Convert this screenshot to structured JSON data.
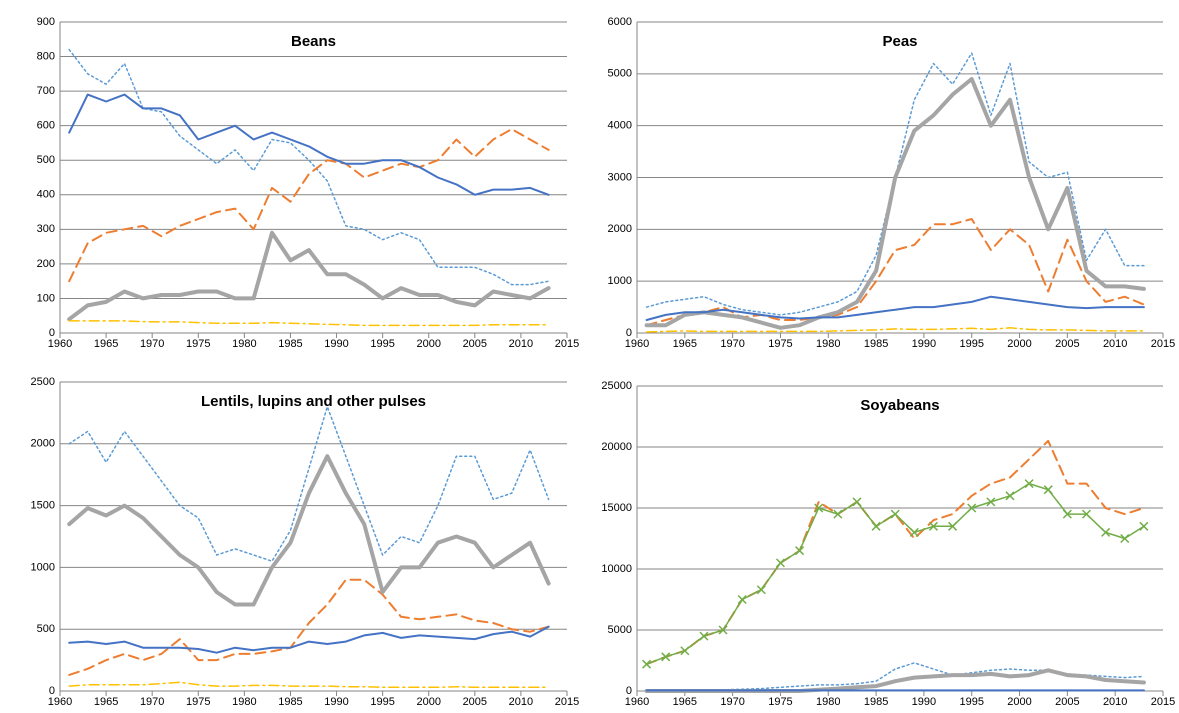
{
  "chart_data": [
    {
      "type": "line",
      "title": "Beans",
      "x": [
        1961,
        1963,
        1965,
        1967,
        1969,
        1971,
        1973,
        1975,
        1977,
        1979,
        1981,
        1983,
        1985,
        1987,
        1989,
        1991,
        1993,
        1995,
        1997,
        1999,
        2001,
        2003,
        2005,
        2007,
        2009,
        2011,
        2013
      ],
      "xlim": [
        1960,
        2015
      ],
      "xticks": [
        1960,
        1965,
        1970,
        1975,
        1980,
        1985,
        1990,
        1995,
        2000,
        2005,
        2010,
        2015
      ],
      "ylim": [
        0,
        900
      ],
      "yticks": [
        0,
        100,
        200,
        300,
        400,
        500,
        600,
        700,
        800,
        900
      ],
      "grid": true,
      "series": [
        {
          "color": "#5b9bd5",
          "dash": "dotted",
          "width": 1.5,
          "values": [
            820,
            750,
            720,
            780,
            650,
            640,
            570,
            530,
            490,
            530,
            470,
            560,
            550,
            500,
            440,
            310,
            300,
            270,
            290,
            270,
            190,
            190,
            190,
            170,
            140,
            140,
            150
          ]
        },
        {
          "color": "#ed7d31",
          "dash": "dashed",
          "width": 2,
          "values": [
            150,
            260,
            290,
            300,
            310,
            280,
            310,
            330,
            350,
            360,
            300,
            420,
            380,
            460,
            500,
            490,
            450,
            470,
            490,
            480,
            500,
            560,
            510,
            560,
            590,
            560,
            530
          ]
        },
        {
          "color": "#a5a5a5",
          "dash": "solid",
          "width": 4,
          "values": [
            40,
            80,
            90,
            120,
            100,
            110,
            110,
            120,
            120,
            100,
            100,
            290,
            210,
            240,
            170,
            170,
            140,
            100,
            130,
            110,
            110,
            90,
            80,
            120,
            110,
            100,
            130
          ]
        },
        {
          "color": "#4472c4",
          "dash": "solid",
          "width": 2,
          "values": [
            580,
            690,
            670,
            690,
            650,
            650,
            630,
            560,
            580,
            600,
            560,
            580,
            560,
            540,
            510,
            490,
            490,
            500,
            500,
            480,
            450,
            430,
            400,
            415,
            415,
            420,
            400
          ]
        },
        {
          "color": "#ffc000",
          "dash": "dashdot",
          "width": 1.5,
          "values": [
            35,
            35,
            35,
            35,
            33,
            32,
            32,
            30,
            28,
            28,
            28,
            30,
            28,
            27,
            25,
            24,
            22,
            22,
            22,
            22,
            22,
            22,
            22,
            24,
            24,
            24,
            24
          ]
        }
      ]
    },
    {
      "type": "line",
      "title": "Peas",
      "x": [
        1961,
        1963,
        1965,
        1967,
        1969,
        1971,
        1973,
        1975,
        1977,
        1979,
        1981,
        1983,
        1985,
        1987,
        1989,
        1991,
        1993,
        1995,
        1997,
        1999,
        2001,
        2003,
        2005,
        2007,
        2009,
        2011,
        2013
      ],
      "xlim": [
        1960,
        2015
      ],
      "xticks": [
        1960,
        1965,
        1970,
        1975,
        1980,
        1985,
        1990,
        1995,
        2000,
        2005,
        2010,
        2015
      ],
      "ylim": [
        0,
        6000
      ],
      "yticks": [
        0,
        1000,
        2000,
        3000,
        4000,
        5000,
        6000
      ],
      "grid": true,
      "series": [
        {
          "color": "#5b9bd5",
          "dash": "dotted",
          "width": 1.5,
          "values": [
            500,
            600,
            650,
            700,
            550,
            450,
            400,
            350,
            400,
            500,
            600,
            800,
            1500,
            3000,
            4500,
            5200,
            4800,
            5400,
            4200,
            5200,
            3300,
            3000,
            3100,
            1400,
            2000,
            1300,
            1300
          ]
        },
        {
          "color": "#ed7d31",
          "dash": "dashed",
          "width": 2,
          "values": [
            150,
            250,
            350,
            400,
            500,
            300,
            350,
            250,
            250,
            300,
            350,
            500,
            1000,
            1600,
            1700,
            2100,
            2100,
            2200,
            1600,
            2000,
            1700,
            800,
            1800,
            1000,
            600,
            700,
            550
          ]
        },
        {
          "color": "#a5a5a5",
          "dash": "solid",
          "width": 4,
          "values": [
            150,
            150,
            350,
            400,
            350,
            300,
            200,
            100,
            150,
            300,
            400,
            600,
            1200,
            3000,
            3900,
            4200,
            4600,
            4900,
            4000,
            4500,
            3000,
            2000,
            2800,
            1200,
            900,
            900,
            850
          ]
        },
        {
          "color": "#4472c4",
          "dash": "solid",
          "width": 2,
          "values": [
            250,
            350,
            400,
            400,
            450,
            400,
            350,
            300,
            280,
            300,
            300,
            350,
            400,
            450,
            500,
            500,
            550,
            600,
            700,
            650,
            600,
            550,
            500,
            480,
            500,
            500,
            500
          ]
        },
        {
          "color": "#ffc000",
          "dash": "dashdot",
          "width": 1.5,
          "values": [
            20,
            30,
            40,
            30,
            30,
            30,
            30,
            30,
            30,
            30,
            40,
            50,
            60,
            80,
            70,
            70,
            80,
            90,
            70,
            100,
            70,
            60,
            60,
            50,
            40,
            40,
            40
          ]
        }
      ]
    },
    {
      "type": "line",
      "title": "Lentils, lupins and other pulses",
      "x": [
        1961,
        1963,
        1965,
        1967,
        1969,
        1971,
        1973,
        1975,
        1977,
        1979,
        1981,
        1983,
        1985,
        1987,
        1989,
        1991,
        1993,
        1995,
        1997,
        1999,
        2001,
        2003,
        2005,
        2007,
        2009,
        2011,
        2013
      ],
      "xlim": [
        1960,
        2015
      ],
      "xticks": [
        1960,
        1965,
        1970,
        1975,
        1980,
        1985,
        1990,
        1995,
        2000,
        2005,
        2010,
        2015
      ],
      "ylim": [
        0,
        2500
      ],
      "yticks": [
        0,
        500,
        1000,
        1500,
        2000,
        2500
      ],
      "grid": true,
      "series": [
        {
          "color": "#5b9bd5",
          "dash": "dotted",
          "width": 1.5,
          "values": [
            2000,
            2100,
            1850,
            2100,
            1900,
            1700,
            1500,
            1400,
            1100,
            1150,
            1100,
            1050,
            1300,
            1800,
            2300,
            1900,
            1500,
            1100,
            1250,
            1200,
            1500,
            1900,
            1900,
            1550,
            1600,
            1950,
            1550
          ]
        },
        {
          "color": "#ed7d31",
          "dash": "dashed",
          "width": 2,
          "values": [
            130,
            180,
            250,
            300,
            250,
            300,
            420,
            250,
            250,
            300,
            300,
            320,
            350,
            550,
            700,
            900,
            900,
            780,
            600,
            580,
            600,
            620,
            570,
            550,
            500,
            480,
            520
          ]
        },
        {
          "color": "#a5a5a5",
          "dash": "solid",
          "width": 4,
          "values": [
            1350,
            1480,
            1420,
            1500,
            1400,
            1250,
            1100,
            1000,
            800,
            700,
            700,
            1000,
            1200,
            1600,
            1900,
            1600,
            1350,
            800,
            1000,
            1000,
            1200,
            1250,
            1200,
            1000,
            1100,
            1200,
            870
          ]
        },
        {
          "color": "#4472c4",
          "dash": "solid",
          "width": 2,
          "values": [
            390,
            400,
            380,
            400,
            350,
            350,
            350,
            340,
            310,
            350,
            330,
            350,
            350,
            400,
            380,
            400,
            450,
            470,
            430,
            450,
            440,
            430,
            420,
            460,
            480,
            440,
            520
          ]
        },
        {
          "color": "#ffc000",
          "dash": "dashdot",
          "width": 1.5,
          "values": [
            40,
            50,
            50,
            50,
            50,
            60,
            70,
            50,
            40,
            40,
            45,
            45,
            40,
            40,
            40,
            35,
            35,
            30,
            30,
            30,
            30,
            35,
            30,
            30,
            30,
            30,
            30
          ]
        }
      ]
    },
    {
      "type": "line",
      "title": "Soyabeans",
      "x": [
        1961,
        1963,
        1965,
        1967,
        1969,
        1971,
        1973,
        1975,
        1977,
        1979,
        1981,
        1983,
        1985,
        1987,
        1989,
        1991,
        1993,
        1995,
        1997,
        1999,
        2001,
        2003,
        2005,
        2007,
        2009,
        2011,
        2013
      ],
      "xlim": [
        1960,
        2015
      ],
      "xticks": [
        1960,
        1965,
        1970,
        1975,
        1980,
        1985,
        1990,
        1995,
        2000,
        2005,
        2010,
        2015
      ],
      "ylim": [
        0,
        25000
      ],
      "yticks": [
        0,
        5000,
        10000,
        15000,
        20000,
        25000
      ],
      "grid": true,
      "series": [
        {
          "color": "#ed7d31",
          "dash": "dashed",
          "width": 2,
          "values": [
            2200,
            2800,
            3300,
            4500,
            5000,
            7500,
            8300,
            10500,
            11500,
            15500,
            14500,
            15500,
            13500,
            14500,
            12500,
            14000,
            14500,
            16000,
            17000,
            17500,
            19000,
            20500,
            17000,
            17000,
            15000,
            14500,
            15000
          ]
        },
        {
          "color": "#70ad47",
          "dash": "solid",
          "width": 1.5,
          "marker": "x",
          "values": [
            2200,
            2800,
            3300,
            4500,
            5000,
            7500,
            8300,
            10500,
            11500,
            15000,
            14500,
            15500,
            13500,
            14500,
            13000,
            13500,
            13500,
            15000,
            15500,
            16000,
            17000,
            16500,
            14500,
            14500,
            13000,
            12500,
            13500
          ]
        },
        {
          "color": "#5b9bd5",
          "dash": "dotted",
          "width": 1.5,
          "values": [
            0,
            0,
            0,
            50,
            100,
            150,
            200,
            300,
            400,
            500,
            500,
            600,
            800,
            1800,
            2300,
            1800,
            1300,
            1500,
            1700,
            1800,
            1700,
            1700,
            1400,
            1300,
            1200,
            1100,
            1200
          ]
        },
        {
          "color": "#a5a5a5",
          "dash": "solid",
          "width": 4,
          "values": [
            0,
            0,
            0,
            0,
            0,
            0,
            0,
            0,
            0,
            100,
            200,
            300,
            400,
            800,
            1100,
            1200,
            1300,
            1300,
            1400,
            1200,
            1300,
            1700,
            1300,
            1200,
            900,
            800,
            700
          ]
        },
        {
          "color": "#4472c4",
          "dash": "solid",
          "width": 2,
          "values": [
            50,
            50,
            50,
            50,
            50,
            50,
            50,
            50,
            50,
            50,
            50,
            50,
            50,
            50,
            50,
            50,
            50,
            50,
            50,
            50,
            50,
            50,
            50,
            50,
            50,
            50,
            50
          ]
        }
      ]
    }
  ]
}
